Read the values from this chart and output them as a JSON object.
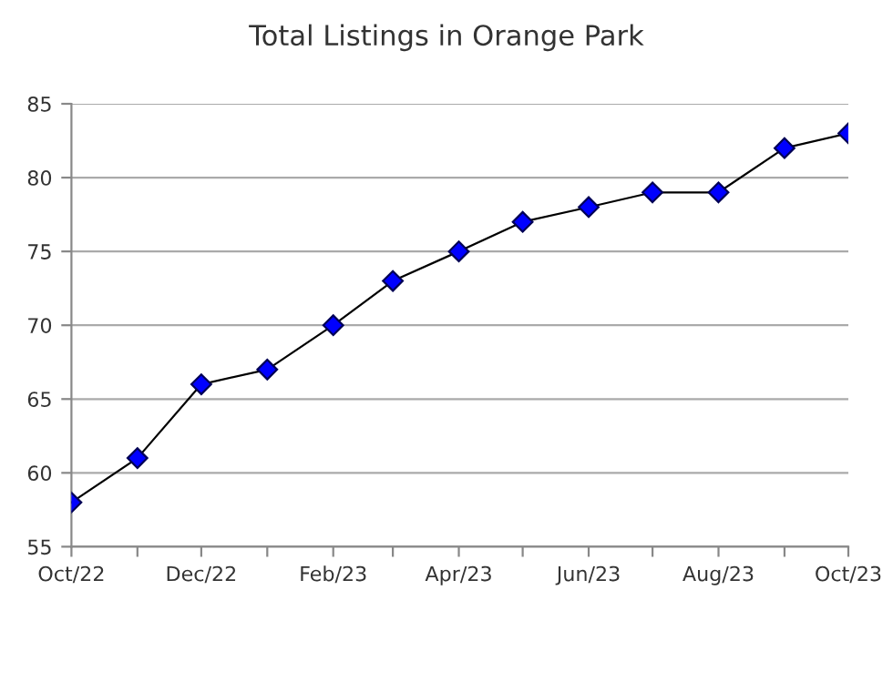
{
  "chart_data": {
    "type": "line",
    "title": "Total Listings in Orange Park",
    "x": [
      "2022-10",
      "2022-11",
      "2022-12",
      "2023-01",
      "2023-02",
      "2023-03",
      "2023-04",
      "2023-05",
      "2023-06",
      "2023-07",
      "2023-08",
      "2023-09",
      "2023-10"
    ],
    "series": [
      {
        "color": "#0000ff",
        "values": [
          58,
          61,
          66,
          67,
          70,
          73,
          75,
          77,
          78,
          79,
          79,
          82,
          83
        ]
      }
    ],
    "xlim": [
      "2022-10",
      "2023-10"
    ],
    "xticks": [
      {
        "value": "2022-10",
        "label": "Oct/22"
      },
      {
        "value": "2022-11",
        "label": null
      },
      {
        "value": "2022-12",
        "label": "Dec/22"
      },
      {
        "value": "2023-01",
        "label": null
      },
      {
        "value": "2023-02",
        "label": "Feb/23"
      },
      {
        "value": "2023-03",
        "label": null
      },
      {
        "value": "2023-04",
        "label": "Apr/23"
      },
      {
        "value": "2023-05",
        "label": null
      },
      {
        "value": "2023-06",
        "label": "Jun/23"
      },
      {
        "value": "2023-07",
        "label": null
      },
      {
        "value": "2023-08",
        "label": "Aug/23"
      },
      {
        "value": "2023-09",
        "label": null
      },
      {
        "value": "2023-10",
        "label": "Oct/23"
      }
    ],
    "ylim": [
      55,
      85
    ],
    "yticks": [
      55,
      60,
      65,
      70,
      75,
      80,
      85
    ],
    "grid": "y",
    "marker": "diamond",
    "line_style": "solid",
    "legend": false
  }
}
